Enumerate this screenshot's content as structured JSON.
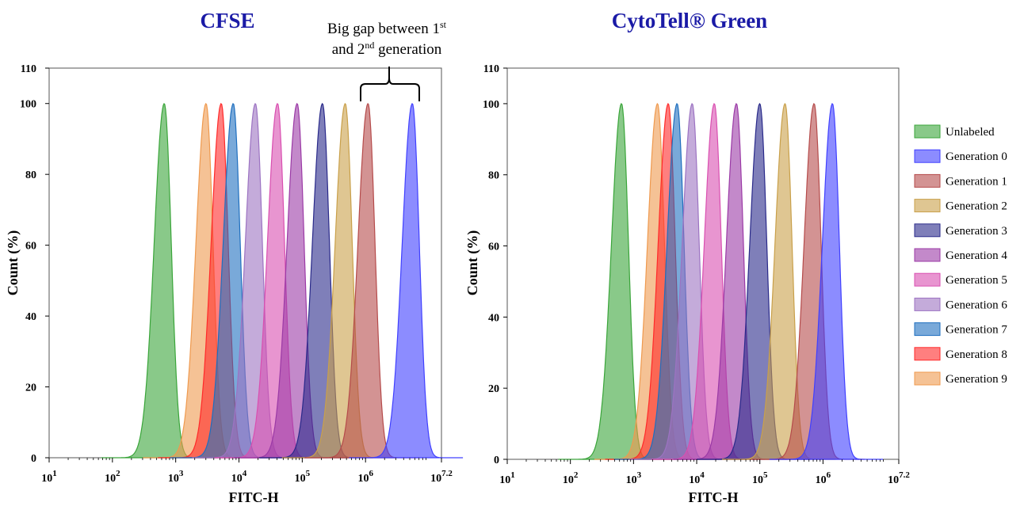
{
  "colors": {
    "title": "#1a1aa6",
    "Unlabeled": "#3aa53a",
    "Generation 0": "#4040ff",
    "Generation 1": "#b54b4b",
    "Generation 2": "#c9a04a",
    "Generation 3": "#2a2a8a",
    "Generation 4": "#9b3aa6",
    "Generation 5": "#d94fb0",
    "Generation 6": "#9c73c2",
    "Generation 7": "#1f6fbf",
    "Generation 8": "#ff2a2a",
    "Generation 9": "#ef9a4f"
  },
  "legend": {
    "position": "right",
    "entries": [
      "Unlabeled",
      "Generation 0",
      "Generation 1",
      "Generation 2",
      "Generation 3",
      "Generation 4",
      "Generation 5",
      "Generation 6",
      "Generation 7",
      "Generation 8",
      "Generation 9"
    ]
  },
  "annotation": {
    "line1_text": "Big gap between 1",
    "line1_sup": "st",
    "line2_pre": "and 2",
    "line2_sup": "nd",
    "line2_post": " generation"
  },
  "chart_data": [
    {
      "type": "area",
      "title": "CFSE",
      "xlabel": "FITC-H",
      "ylabel": "Count (%)",
      "x_scale": "log10",
      "xlim": [
        1,
        7.2
      ],
      "ylim": [
        0,
        110
      ],
      "yticks": [
        "0",
        "20",
        "40",
        "60",
        "80",
        "100",
        "110"
      ],
      "xtick_base": "10",
      "xtick_exps": [
        "1",
        "2",
        "3",
        "4",
        "5",
        "6",
        "7.2"
      ],
      "grid": false,
      "peak_height": 100,
      "series": [
        {
          "name": "Unlabeled",
          "peak_log10": 2.82
        },
        {
          "name": "Generation 9",
          "peak_log10": 3.48
        },
        {
          "name": "Generation 8",
          "peak_log10": 3.72
        },
        {
          "name": "Generation 7",
          "peak_log10": 3.91
        },
        {
          "name": "Generation 6",
          "peak_log10": 4.26
        },
        {
          "name": "Generation 5",
          "peak_log10": 4.61
        },
        {
          "name": "Generation 4",
          "peak_log10": 4.92
        },
        {
          "name": "Generation 3",
          "peak_log10": 5.32
        },
        {
          "name": "Generation 2",
          "peak_log10": 5.68
        },
        {
          "name": "Generation 1",
          "peak_log10": 6.04
        },
        {
          "name": "Generation 0",
          "peak_log10": 6.74
        }
      ]
    },
    {
      "type": "area",
      "title": "CytoTell® Green",
      "xlabel": "FITC-H",
      "ylabel": "Count (%)",
      "x_scale": "log10",
      "xlim": [
        1,
        7.2
      ],
      "ylim": [
        0,
        110
      ],
      "yticks": [
        "0",
        "20",
        "40",
        "60",
        "80",
        "100",
        "110"
      ],
      "xtick_base": "10",
      "xtick_exps": [
        "1",
        "2",
        "3",
        "4",
        "5",
        "6",
        "7.2"
      ],
      "grid": false,
      "peak_height": 100,
      "series": [
        {
          "name": "Unlabeled",
          "peak_log10": 2.81
        },
        {
          "name": "Generation 9",
          "peak_log10": 3.38
        },
        {
          "name": "Generation 8",
          "peak_log10": 3.55
        },
        {
          "name": "Generation 7",
          "peak_log10": 3.69
        },
        {
          "name": "Generation 6",
          "peak_log10": 3.93
        },
        {
          "name": "Generation 5",
          "peak_log10": 4.28
        },
        {
          "name": "Generation 4",
          "peak_log10": 4.63
        },
        {
          "name": "Generation 3",
          "peak_log10": 5.0
        },
        {
          "name": "Generation 2",
          "peak_log10": 5.4
        },
        {
          "name": "Generation 1",
          "peak_log10": 5.86
        },
        {
          "name": "Generation 0",
          "peak_log10": 6.15
        }
      ]
    }
  ]
}
